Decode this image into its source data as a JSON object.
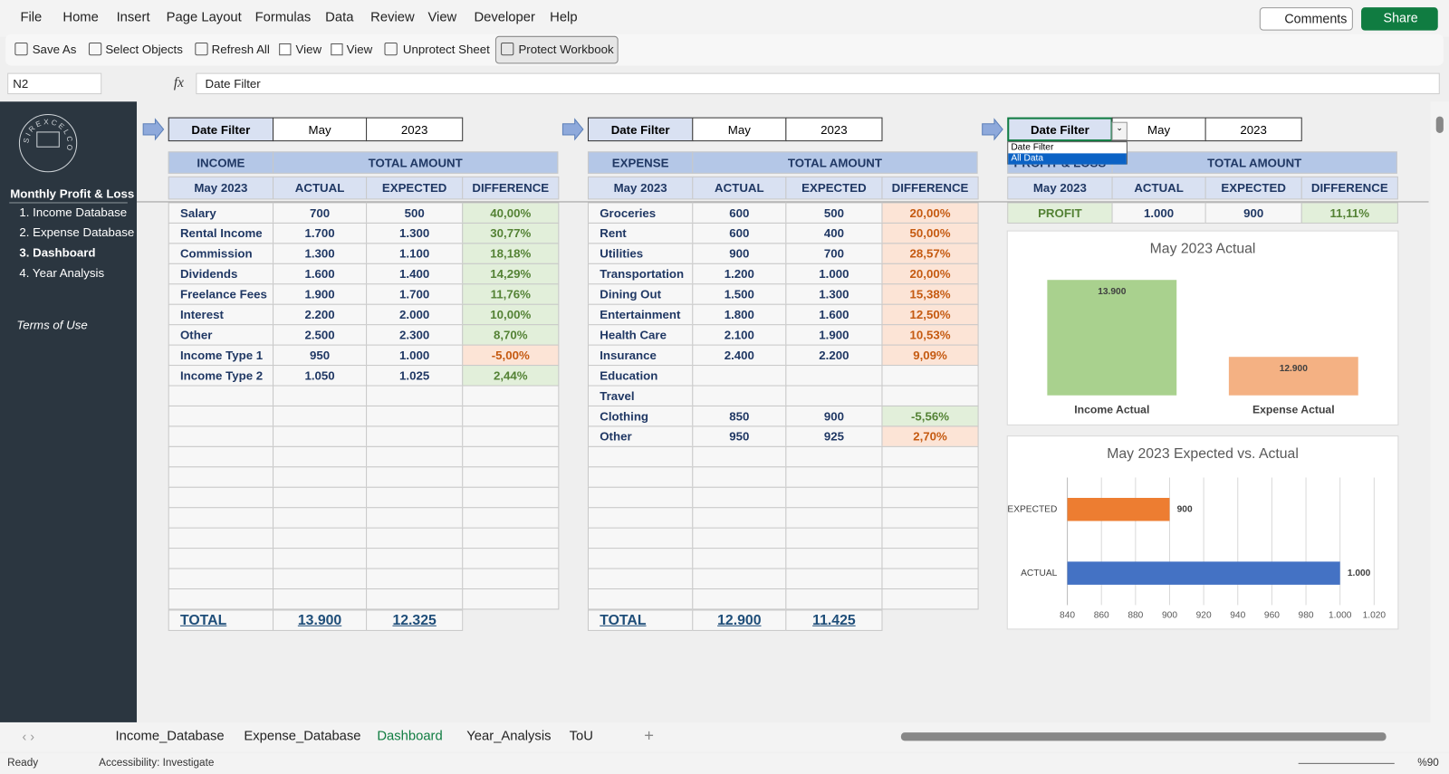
{
  "menu": [
    "File",
    "Home",
    "Insert",
    "Page Layout",
    "Formulas",
    "Data",
    "Review",
    "View",
    "Developer",
    "Help"
  ],
  "header_buttons": {
    "comments": "Comments",
    "share": "Share"
  },
  "toolbar": [
    "Save As",
    "Select Objects",
    "Refresh All",
    "View",
    "View",
    "Unprotect Sheet",
    "Protect Workbook"
  ],
  "formula_bar": {
    "name_box": "N2",
    "formula": "Date Filter"
  },
  "sidebar": {
    "logo": "SIREXCELCO",
    "title": "Monthly Profit & Loss",
    "items": [
      "1. Income Database",
      "2. Expense Database",
      "3. Dashboard",
      "4. Year Analysis"
    ],
    "active": 2,
    "terms": "Terms of Use"
  },
  "panels": [
    {
      "filter": {
        "label": "Date Filter",
        "month": "May",
        "year": "2023"
      },
      "header": [
        "INCOME",
        "TOTAL AMOUNT"
      ],
      "subheader": [
        "May 2023",
        "ACTUAL",
        "EXPECTED",
        "DIFFERENCE"
      ],
      "rows": [
        [
          "Salary",
          "700",
          "500",
          "40,00%"
        ],
        [
          "Rental Income",
          "1.700",
          "1.300",
          "30,77%"
        ],
        [
          "Commission",
          "1.300",
          "1.100",
          "18,18%"
        ],
        [
          "Dividends",
          "1.600",
          "1.400",
          "14,29%"
        ],
        [
          "Freelance Fees",
          "1.900",
          "1.700",
          "11,76%"
        ],
        [
          "Interest",
          "2.200",
          "2.000",
          "10,00%"
        ],
        [
          "Other",
          "2.500",
          "2.300",
          "8,70%"
        ],
        [
          "Income Type 1",
          "950",
          "1.000",
          "-5,00%"
        ],
        [
          "Income Type 2",
          "1.050",
          "1.025",
          "2,44%"
        ]
      ],
      "total": [
        "TOTAL",
        "13.900",
        "12.325"
      ]
    },
    {
      "filter": {
        "label": "Date Filter",
        "month": "May",
        "year": "2023"
      },
      "header": [
        "EXPENSE",
        "TOTAL AMOUNT"
      ],
      "subheader": [
        "May 2023",
        "ACTUAL",
        "EXPECTED",
        "DIFFERENCE"
      ],
      "rows": [
        [
          "Groceries",
          "600",
          "500",
          "20,00%"
        ],
        [
          "Rent",
          "600",
          "400",
          "50,00%"
        ],
        [
          "Utilities",
          "900",
          "700",
          "28,57%"
        ],
        [
          "Transportation",
          "1.200",
          "1.000",
          "20,00%"
        ],
        [
          "Dining Out",
          "1.500",
          "1.300",
          "15,38%"
        ],
        [
          "Entertainment",
          "1.800",
          "1.600",
          "12,50%"
        ],
        [
          "Health Care",
          "2.100",
          "1.900",
          "10,53%"
        ],
        [
          "Insurance",
          "2.400",
          "2.200",
          "9,09%"
        ],
        [
          "Education"
        ],
        [
          "Travel"
        ],
        [
          "Clothing",
          "850",
          "900",
          "-5,56%"
        ],
        [
          "Other",
          "950",
          "925",
          "2,70%"
        ]
      ],
      "total": [
        "TOTAL",
        "12.900",
        "11.425"
      ]
    },
    {
      "filter": {
        "label": "Date Filter",
        "month": "May",
        "year": "2023"
      },
      "header": [
        "PROFIT & LOSS",
        "TOTAL AMOUNT"
      ],
      "subheader": [
        "May 2023",
        "ACTUAL",
        "EXPECTED",
        "DIFFERENCE"
      ],
      "rows": [
        [
          "PROFIT",
          "1.000",
          "900",
          "11,11%"
        ]
      ]
    }
  ],
  "dropdown": [
    "Date Filter",
    "All Data"
  ],
  "chart_data": [
    {
      "type": "column",
      "title": "May 2023 Actual",
      "categories": [
        "Income Actual",
        "Expense Actual"
      ],
      "values": [
        13900,
        12900
      ],
      "value_labels": [
        "13.900",
        "12.900"
      ],
      "colors": [
        "#a9d18e",
        "#f4b183"
      ],
      "ylim": [
        12400,
        14000
      ]
    },
    {
      "type": "bar",
      "title": "May 2023 Expected vs. Actual",
      "categories": [
        "EXPECTED",
        "ACTUAL"
      ],
      "values": [
        900,
        1000
      ],
      "value_labels": [
        "900",
        "1.000"
      ],
      "colors": [
        "#ed7d31",
        "#4472c4"
      ],
      "xlim": [
        840,
        1020
      ],
      "xticks": [
        840,
        860,
        880,
        900,
        920,
        940,
        960,
        980,
        {
          "value": 1000,
          "label": "1.000"
        },
        {
          "value": 1020,
          "label": "1.020"
        }
      ],
      "grid": true
    }
  ],
  "sheet_tabs": {
    "tabs": [
      "Income_Database",
      "Expense_Database",
      "Dashboard",
      "Year_Analysis",
      "ToU"
    ],
    "active": 2
  },
  "status_bar": {
    "ready": "Ready",
    "accessibility": "Accessibility: Investigate",
    "zoom": "%90"
  }
}
